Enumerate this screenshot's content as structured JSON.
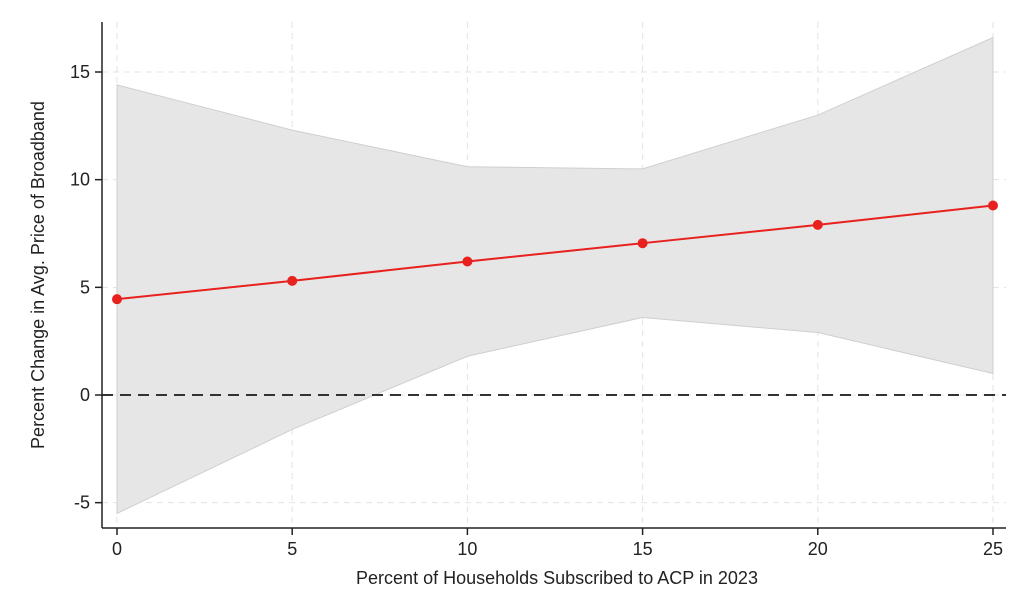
{
  "chart_data": {
    "type": "line",
    "title": "",
    "xlabel": "Percent of Households Subscribed to ACP in 2023",
    "ylabel": "Percent Change in Avg. Price of Broadband",
    "x": [
      0,
      5,
      10,
      15,
      20,
      25
    ],
    "xlim": [
      0,
      25
    ],
    "ylim": [
      -6,
      17.3
    ],
    "xticks": [
      0,
      5,
      10,
      15,
      20,
      25
    ],
    "yticks": [
      -5,
      0,
      5,
      10,
      15
    ],
    "xtick_labels": [
      "0",
      "5",
      "10",
      "15",
      "20",
      "25"
    ],
    "ytick_labels": [
      "-5",
      "0",
      "5",
      "10",
      "15"
    ],
    "grid": true,
    "reference_line_y": 0,
    "series": [
      {
        "values": [
          4.45,
          5.3,
          6.2,
          7.05,
          7.9,
          8.8
        ],
        "color": "#e8211e",
        "markers": true
      }
    ],
    "confidence_band": {
      "lower": [
        -5.5,
        -1.6,
        1.8,
        3.6,
        2.9,
        1.0
      ],
      "upper": [
        14.4,
        12.3,
        10.6,
        10.5,
        13.0,
        16.6
      ],
      "color": "#e6e6e6"
    }
  }
}
